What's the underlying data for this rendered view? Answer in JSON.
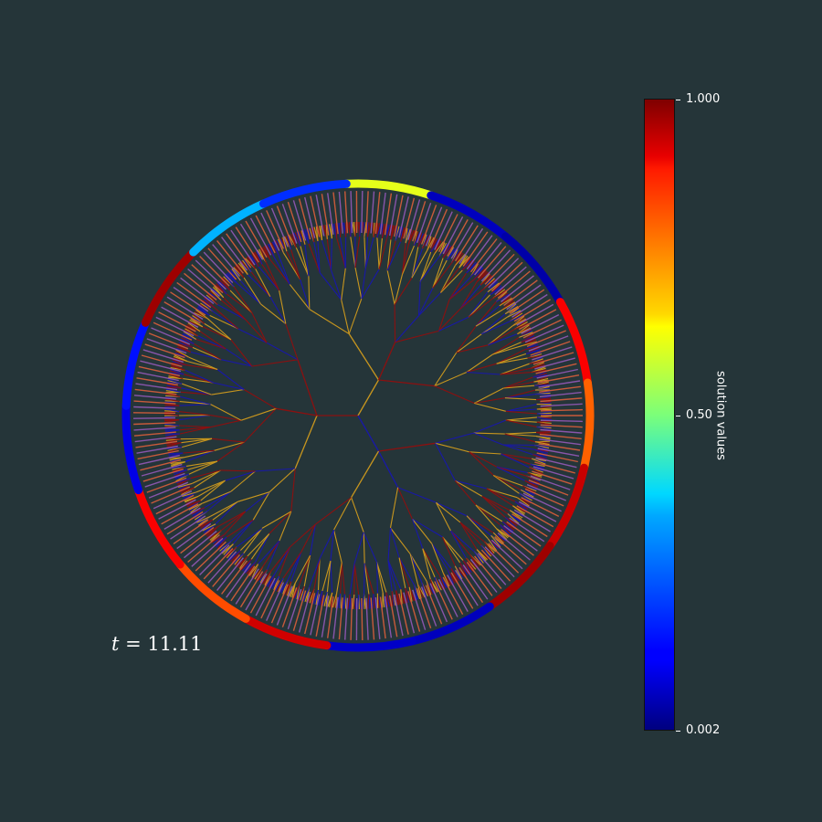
{
  "time_label": {
    "variable": "t",
    "equals": " = ",
    "value": "11.11"
  },
  "colorbar": {
    "label": "solution values",
    "ticks": [
      "1.000",
      "0.50",
      "0.002"
    ],
    "min": 0.002,
    "max": 1.0,
    "colormap": "jet"
  },
  "tree": {
    "branching": 3,
    "depth": 6,
    "edge_colors": [
      "#8b1010",
      "#c8961e",
      "#1818a8"
    ],
    "leaf_stroke_colors": [
      "#c85a3a",
      "#8855aa"
    ]
  },
  "boundary_arcs": [
    {
      "value": 0.6
    },
    {
      "value": 0.06
    },
    {
      "value": 0.04
    },
    {
      "value": 0.88
    },
    {
      "value": 0.78
    },
    {
      "value": 0.93
    },
    {
      "value": 0.97
    },
    {
      "value": 0.06
    },
    {
      "value": 0.07
    },
    {
      "value": 0.92
    },
    {
      "value": 0.8
    },
    {
      "value": 0.88
    },
    {
      "value": 0.1
    },
    {
      "value": 0.14
    },
    {
      "value": 0.97
    },
    {
      "value": 0.3
    },
    {
      "value": 0.17
    }
  ]
}
